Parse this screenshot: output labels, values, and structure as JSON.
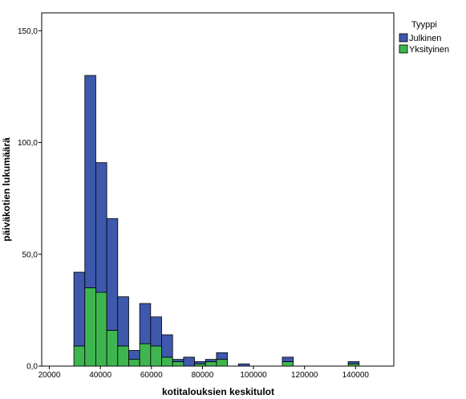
{
  "chart_data": {
    "type": "bar",
    "subtype": "stacked-histogram",
    "title": "",
    "xlabel": "kotitalouksien keskitulot",
    "ylabel": "päiväkotien lukumäärä",
    "xlim": [
      17000,
      155000
    ],
    "ylim": [
      0,
      158
    ],
    "bin_width": 4300,
    "x_ticks": [
      20000,
      40000,
      60000,
      80000,
      100000,
      120000,
      140000
    ],
    "x_tick_labels": [
      "20000",
      "40000",
      "60000",
      "80000",
      "100000",
      "120000",
      "140000"
    ],
    "y_ticks": [
      0,
      50,
      100,
      150
    ],
    "y_tick_labels": [
      "0,0",
      "50,0",
      "100,0",
      "150,0"
    ],
    "grid": false,
    "legend": {
      "title": "Tyyppi",
      "placement": "top-right outside"
    },
    "bins": [
      {
        "x0": 29600,
        "x1": 33900,
        "values": [
          33,
          9
        ]
      },
      {
        "x0": 33900,
        "x1": 38200,
        "values": [
          95,
          35
        ]
      },
      {
        "x0": 38200,
        "x1": 42500,
        "values": [
          58,
          33
        ]
      },
      {
        "x0": 42500,
        "x1": 46800,
        "values": [
          50,
          16
        ]
      },
      {
        "x0": 46800,
        "x1": 51100,
        "values": [
          22,
          9
        ]
      },
      {
        "x0": 51100,
        "x1": 55400,
        "values": [
          4,
          3
        ]
      },
      {
        "x0": 55400,
        "x1": 59700,
        "values": [
          18,
          10
        ]
      },
      {
        "x0": 59700,
        "x1": 64000,
        "values": [
          13,
          9
        ]
      },
      {
        "x0": 64000,
        "x1": 68300,
        "values": [
          10,
          4
        ]
      },
      {
        "x0": 68300,
        "x1": 72600,
        "values": [
          1,
          2
        ]
      },
      {
        "x0": 72600,
        "x1": 76900,
        "values": [
          4,
          0
        ]
      },
      {
        "x0": 76900,
        "x1": 81200,
        "values": [
          1,
          1
        ]
      },
      {
        "x0": 81200,
        "x1": 85500,
        "values": [
          1,
          2
        ]
      },
      {
        "x0": 85500,
        "x1": 89800,
        "values": [
          3,
          3
        ]
      },
      {
        "x0": 94100,
        "x1": 98400,
        "values": [
          1,
          0
        ]
      },
      {
        "x0": 111300,
        "x1": 115600,
        "values": [
          2,
          2
        ]
      },
      {
        "x0": 137100,
        "x1": 141400,
        "values": [
          1,
          1
        ]
      }
    ],
    "series": [
      {
        "name": "Julkinen",
        "color": "#3e58ac"
      },
      {
        "name": "Yksityinen",
        "color": "#3fb550"
      }
    ]
  }
}
